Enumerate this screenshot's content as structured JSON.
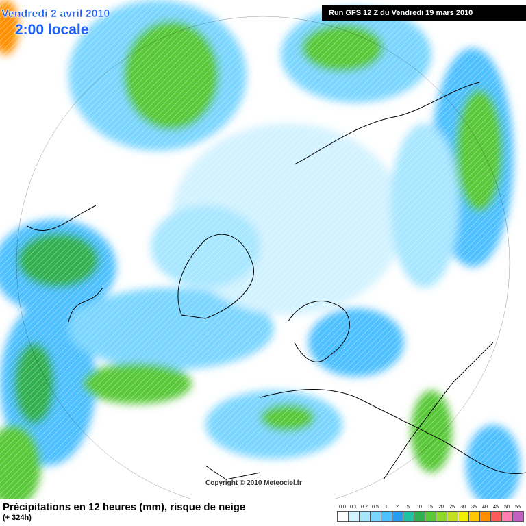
{
  "header": {
    "date": "Vendredi 2 avril 2010",
    "time": "2:00 locale",
    "run": "Run GFS 12 Z du Vendredi 19 mars 2010"
  },
  "copyright": "Copyright © 2010 Meteociel.fr",
  "footer": {
    "title": "Précipitations en 12 heures (mm), risque de neige",
    "lead": "(+ 324h)"
  },
  "legend": {
    "labels": [
      "0.0",
      "0.1",
      "0.2",
      "0.5",
      "1",
      "2",
      "5",
      "10",
      "15",
      "20",
      "25",
      "30",
      "35",
      "40",
      "45",
      "50",
      "55"
    ],
    "colors": [
      "#ffffff",
      "#d2f2ff",
      "#a6e6ff",
      "#7ad6ff",
      "#4ec0ff",
      "#2a9cf0",
      "#20c0a0",
      "#30b050",
      "#58c838",
      "#8cd82c",
      "#c0e020",
      "#f0f000",
      "#ffc800",
      "#ff9000",
      "#ff5a5a",
      "#ff80b0",
      "#c060c0"
    ]
  }
}
